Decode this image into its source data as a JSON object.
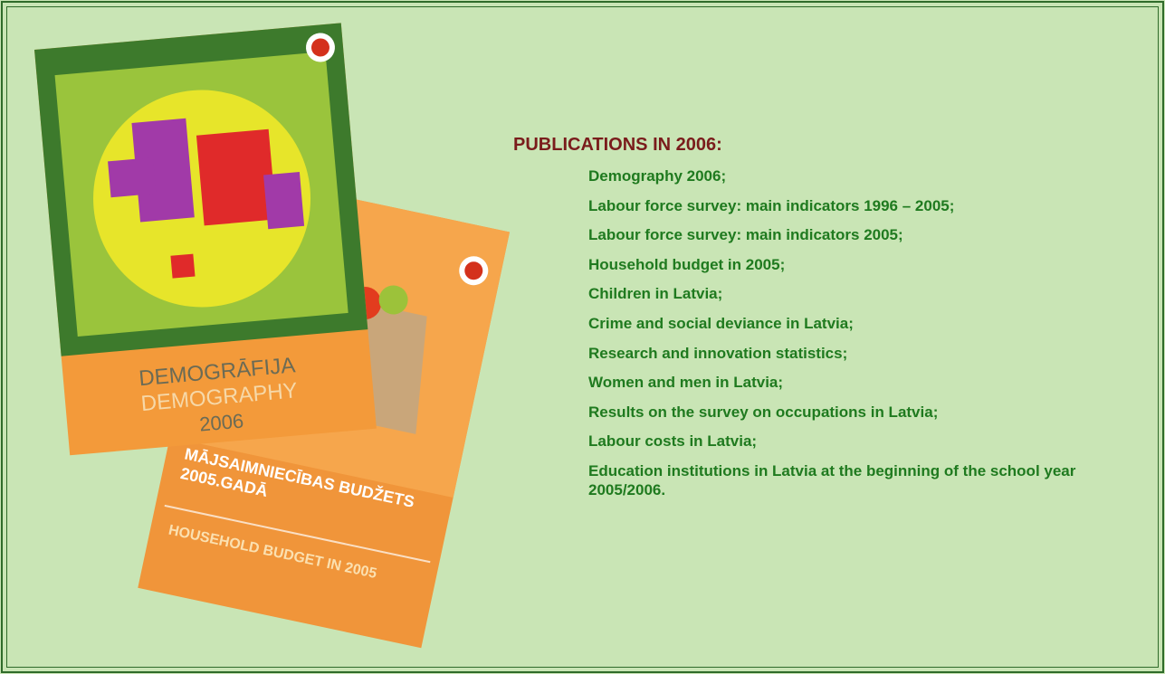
{
  "title": "PUBLICATIONS IN 2006:",
  "publications": [
    "Demography 2006;",
    "Labour force survey: main indicators 1996 – 2005;",
    "Labour force survey: main indicators 2005;",
    "Household budget in 2005;",
    "Children in Latvia;",
    "Crime and social deviance in Latvia;",
    "Research and innovation statistics;",
    "Women and men in Latvia;",
    "Results on the survey on occupations in Latvia;",
    "Labour costs in Latvia;",
    "Education institutions in Latvia at the beginning of the school year 2005/2006."
  ],
  "covers": [
    {
      "lines": [
        "DEMOGRĀFIJA",
        "DEMOGRAPHY",
        "2006"
      ]
    },
    {
      "lines": [
        "MĀJSAIMNIECĪBAS BUDŽETS",
        "2005.GADĀ",
        "HOUSEHOLD BUDGET IN 2005"
      ]
    }
  ]
}
